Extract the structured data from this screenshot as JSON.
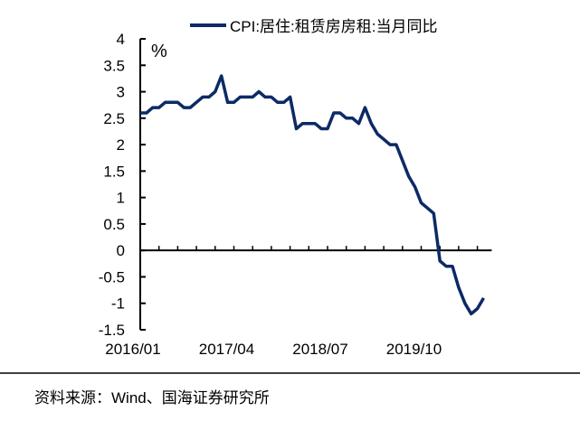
{
  "chart_data": {
    "type": "line",
    "legend_label": "CPI:居住:租赁房房租:当月同比",
    "legend_position": "top",
    "ylabel": "%",
    "ylim": [
      -1.5,
      4
    ],
    "yticks": [
      4,
      3.5,
      3,
      2.5,
      2,
      1.5,
      1,
      0.5,
      0,
      -0.5,
      -1,
      -1.5
    ],
    "ytick_labels": [
      "4",
      "3.5",
      "3",
      "2.5",
      "2",
      "1.5",
      "1",
      "0.5",
      "0",
      "-0.5",
      "-1",
      "-1.5"
    ],
    "x_start": "2016/01",
    "xtick_labels": [
      "2016/01",
      "2017/04",
      "2018/07",
      "2019/10"
    ],
    "grid": false,
    "color": "#0c2a66",
    "values": [
      2.6,
      2.6,
      2.7,
      2.7,
      2.8,
      2.8,
      2.8,
      2.7,
      2.7,
      2.8,
      2.9,
      2.9,
      3.0,
      3.3,
      2.8,
      2.8,
      2.9,
      2.9,
      2.9,
      3.0,
      2.9,
      2.9,
      2.8,
      2.8,
      2.9,
      2.3,
      2.4,
      2.4,
      2.4,
      2.3,
      2.3,
      2.6,
      2.6,
      2.5,
      2.5,
      2.4,
      2.7,
      2.4,
      2.2,
      2.1,
      2.0,
      2.0,
      1.7,
      1.4,
      1.2,
      0.9,
      0.8,
      0.7,
      -0.2,
      -0.3,
      -0.3,
      -0.7,
      -1.0,
      -1.2,
      -1.1,
      -0.9
    ]
  },
  "source": "资料来源：Wind、国海证券研究所"
}
